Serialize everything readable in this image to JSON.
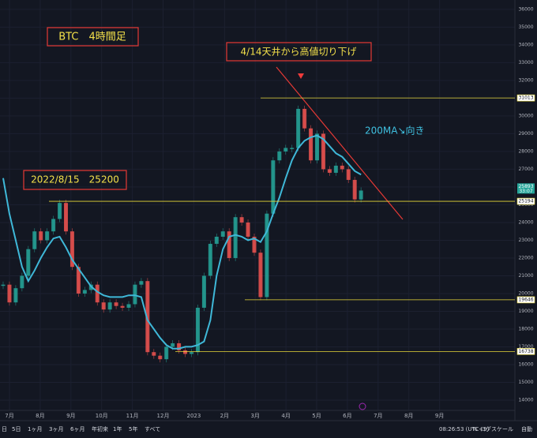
{
  "chart_data": {
    "type": "candlestick",
    "title": "BTC　4時間足",
    "annotations": [
      "4/14天井から高値切り下げ",
      "2022/8/15　25200",
      "200MA↘向き"
    ],
    "x_tick_labels": [
      "7月",
      "8月",
      "9月",
      "10月",
      "11月",
      "12月",
      "2023",
      "2月",
      "3月",
      "4月",
      "5月",
      "6月",
      "7月",
      "8月",
      "9月"
    ],
    "price": {
      "up_color": "#26a69a",
      "down_color": "#ef5350",
      "values": [
        20500,
        19500,
        20300,
        21000,
        22500,
        23500,
        23000,
        23500,
        24200,
        25100,
        23500,
        21500,
        20000,
        20200,
        20500,
        19500,
        19100,
        19500,
        19300,
        19200,
        19400,
        20500,
        20700,
        16700,
        16500,
        16300,
        17000,
        17200,
        16800,
        16600,
        16700,
        19200,
        21000,
        22800,
        23200,
        23500,
        22000,
        24300,
        24000,
        23200,
        22300,
        19800,
        24500,
        27500,
        28000,
        28200,
        28200,
        30400,
        29300,
        27500,
        29000,
        27000,
        26800,
        27200,
        27000,
        26400,
        25300,
        25800
      ]
    },
    "ma": {
      "color": "#3fb8d8",
      "values": [
        26500,
        24500,
        23000,
        21500,
        20700,
        21300,
        22000,
        22600,
        23100,
        23200,
        22600,
        21900,
        21400,
        20900,
        20400,
        20100,
        19900,
        19800,
        19800,
        19800,
        19900,
        19900,
        19800,
        18500,
        18000,
        17500,
        17100,
        16900,
        16900,
        17000,
        17000,
        17100,
        17300,
        18500,
        21000,
        22500,
        23200,
        23300,
        23200,
        23000,
        23100,
        22900,
        23500,
        24500,
        25400,
        26500,
        27500,
        28200,
        28600,
        28800,
        28900,
        28700,
        28300,
        27900,
        27700,
        27300,
        26900,
        26700
      ]
    },
    "levels": [
      31013,
      25194,
      19646,
      16738
    ],
    "level_color": "#e8d838",
    "current_price": 25893,
    "countdown": "33:07",
    "ylim": [
      13420,
      36530
    ],
    "yticks": [
      14000,
      15000,
      16000,
      17000,
      18000,
      19000,
      20000,
      21000,
      22000,
      23000,
      24000,
      25000,
      26000,
      27000,
      28000,
      29000,
      30000,
      31000,
      32000,
      33000,
      34000,
      35000,
      36000
    ],
    "grid": true,
    "range_buttons": [
      "日",
      "5日",
      "1ヶ月",
      "3ヶ月",
      "6ヶ月",
      "年初来",
      "1年",
      "5年",
      "すべて"
    ],
    "clock": "08:26:53 (UTC+9)",
    "percent": "%",
    "log_scale_label": "ログスケール",
    "auto_label": "自動"
  }
}
